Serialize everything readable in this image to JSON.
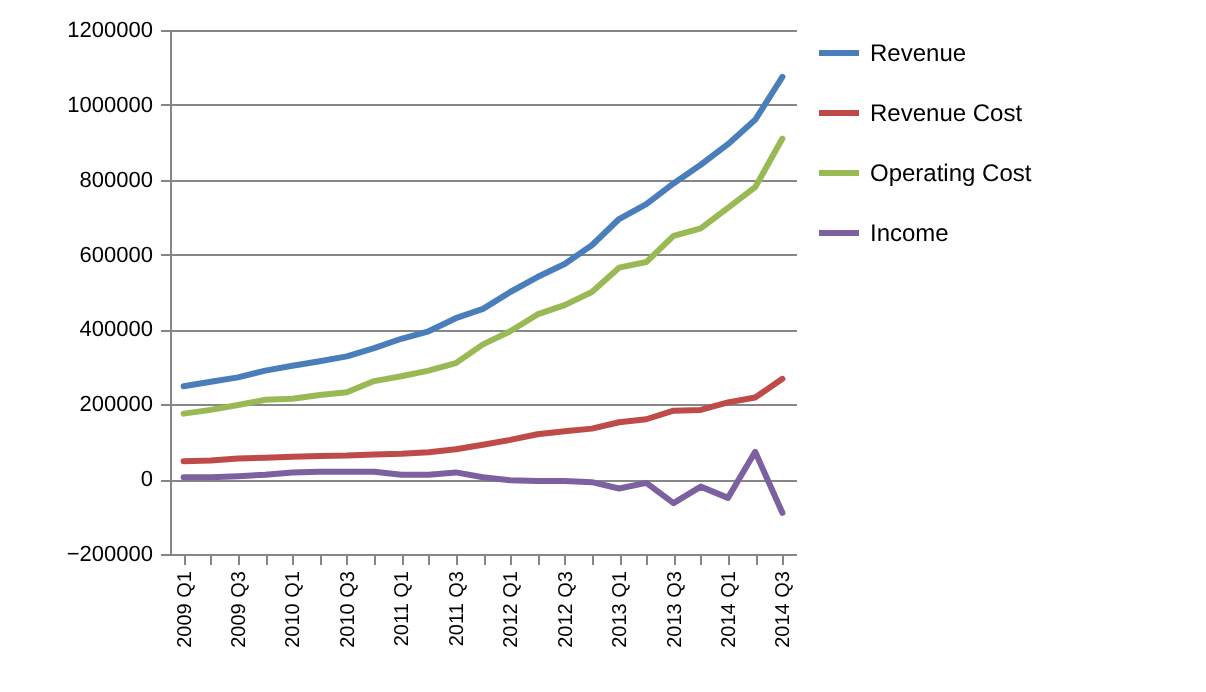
{
  "chart_data": {
    "type": "line",
    "categories": [
      "2009 Q1",
      null,
      "2009 Q3",
      null,
      "2010 Q1",
      null,
      "2010 Q3",
      null,
      "2011 Q1",
      null,
      "2011 Q3",
      null,
      "2012 Q1",
      null,
      "2012 Q3",
      null,
      "2013 Q1",
      null,
      "2013 Q3",
      null,
      "2014 Q1",
      null,
      "2014 Q3"
    ],
    "series": [
      {
        "name": "Revenue",
        "color": "#4a7ebb",
        "values": [
          248000,
          260000,
          272000,
          290000,
          303000,
          315000,
          328000,
          350000,
          375000,
          395000,
          430000,
          455000,
          500000,
          540000,
          575000,
          625000,
          695000,
          735000,
          790000,
          840000,
          895000,
          960000,
          1075000
        ]
      },
      {
        "name": "Revenue Cost",
        "color": "#be4b48",
        "values": [
          48000,
          50000,
          55000,
          57000,
          60000,
          62000,
          63000,
          66000,
          68000,
          72000,
          80000,
          92000,
          105000,
          120000,
          128000,
          135000,
          152000,
          160000,
          183000,
          185000,
          205000,
          218000,
          268000
        ]
      },
      {
        "name": "Operating Cost",
        "color": "#98b954",
        "values": [
          175000,
          185000,
          198000,
          212000,
          215000,
          225000,
          232000,
          262000,
          275000,
          290000,
          310000,
          360000,
          395000,
          440000,
          465000,
          500000,
          565000,
          580000,
          650000,
          670000,
          725000,
          780000,
          910000
        ]
      },
      {
        "name": "Income",
        "color": "#7d60a0",
        "values": [
          5000,
          5000,
          8000,
          12000,
          18000,
          20000,
          20000,
          20000,
          12000,
          12000,
          18000,
          5000,
          -3000,
          -5000,
          -5000,
          -8000,
          -25000,
          -10000,
          -64000,
          -20000,
          -50000,
          73000,
          -90000
        ]
      }
    ],
    "ylim": [
      -200000,
      1200000
    ],
    "yticks": [
      -200000,
      0,
      200000,
      400000,
      600000,
      800000,
      1000000,
      1200000
    ],
    "grid": "y",
    "legend": "right"
  }
}
